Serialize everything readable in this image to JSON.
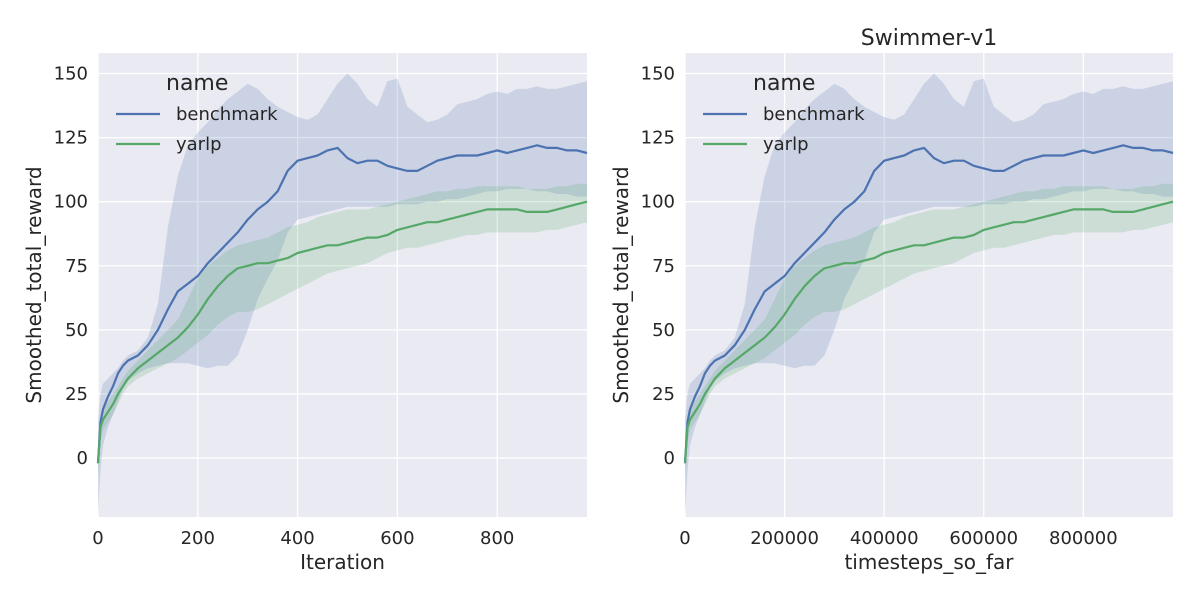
{
  "chart_data": [
    {
      "type": "line",
      "title": "",
      "xlabel": "Iteration",
      "ylabel": "Smoothed_total_reward",
      "xlim": [
        0,
        980
      ],
      "ylim": [
        -23,
        158
      ],
      "xticks": [
        "0",
        "200",
        "400",
        "600",
        "800"
      ],
      "xtick_values": [
        0,
        200,
        400,
        600,
        800
      ],
      "yticks": [
        "0",
        "25",
        "50",
        "75",
        "100",
        "125",
        "150"
      ],
      "ytick_values": [
        0,
        25,
        50,
        75,
        100,
        125,
        150
      ],
      "grid": true,
      "legend": {
        "title": "name",
        "placement": "top-left",
        "entries": [
          "benchmark",
          "yarlp"
        ]
      },
      "x": [
        0,
        5,
        10,
        20,
        30,
        40,
        50,
        60,
        80,
        100,
        120,
        140,
        160,
        180,
        200,
        220,
        240,
        260,
        280,
        300,
        320,
        340,
        360,
        380,
        400,
        420,
        440,
        460,
        480,
        500,
        520,
        540,
        560,
        580,
        600,
        620,
        640,
        660,
        680,
        700,
        720,
        740,
        760,
        780,
        800,
        820,
        840,
        860,
        880,
        900,
        920,
        940,
        960,
        980
      ],
      "series": [
        {
          "name": "benchmark",
          "color": "#4c72b0",
          "values": [
            -2,
            14,
            19,
            24,
            28,
            33,
            36,
            38,
            40,
            44,
            50,
            58,
            65,
            68,
            71,
            76,
            80,
            84,
            88,
            93,
            97,
            100,
            104,
            112,
            116,
            117,
            118,
            120,
            121,
            117,
            115,
            116,
            116,
            114,
            113,
            112,
            112,
            114,
            116,
            117,
            118,
            118,
            118,
            119,
            120,
            119,
            120,
            121,
            122,
            121,
            121,
            120,
            120,
            119
          ],
          "upper": [
            15,
            25,
            29,
            31,
            33,
            35,
            38,
            40,
            42,
            47,
            60,
            90,
            110,
            122,
            127,
            131,
            136,
            140,
            143,
            146,
            144,
            140,
            137,
            135,
            133,
            132,
            134,
            140,
            146,
            150,
            146,
            140,
            137,
            147,
            148,
            137,
            134,
            131,
            132,
            134,
            138,
            139,
            140,
            142,
            143,
            142,
            144,
            144,
            145,
            144,
            144,
            145,
            146,
            147
          ],
          "lower": [
            -22,
            -5,
            5,
            12,
            17,
            22,
            27,
            30,
            33,
            35,
            36,
            37,
            37,
            37,
            36,
            35,
            36,
            36,
            40,
            50,
            62,
            70,
            77,
            88,
            93,
            94,
            95,
            96,
            97,
            98,
            98,
            98,
            98,
            98,
            99,
            99,
            99,
            100,
            100,
            101,
            101,
            102,
            103,
            104,
            104,
            105,
            105,
            105,
            104,
            104,
            103,
            103,
            102,
            102
          ]
        },
        {
          "name": "yarlp",
          "color": "#55a868",
          "values": [
            -2,
            12,
            15,
            18,
            21,
            25,
            28,
            31,
            35,
            38,
            41,
            44,
            47,
            51,
            56,
            62,
            67,
            71,
            74,
            75,
            76,
            76,
            77,
            78,
            80,
            81,
            82,
            83,
            83,
            84,
            85,
            86,
            86,
            87,
            89,
            90,
            91,
            92,
            92,
            93,
            94,
            95,
            96,
            97,
            97,
            97,
            97,
            96,
            96,
            96,
            97,
            98,
            99,
            100
          ],
          "upper": [
            8,
            16,
            19,
            22,
            25,
            28,
            31,
            34,
            38,
            42,
            46,
            50,
            54,
            62,
            70,
            75,
            78,
            81,
            83,
            84,
            85,
            86,
            88,
            90,
            91,
            92,
            94,
            95,
            96,
            97,
            97,
            97,
            98,
            99,
            100,
            101,
            102,
            103,
            104,
            104,
            105,
            105,
            106,
            106,
            106,
            106,
            106,
            105,
            105,
            105,
            106,
            106,
            107,
            107
          ],
          "lower": [
            -8,
            6,
            11,
            14,
            17,
            21,
            25,
            28,
            31,
            33,
            35,
            37,
            39,
            42,
            45,
            48,
            52,
            55,
            57,
            57,
            58,
            60,
            62,
            64,
            66,
            68,
            70,
            72,
            73,
            74,
            75,
            76,
            78,
            80,
            81,
            82,
            82,
            83,
            84,
            85,
            86,
            87,
            87,
            88,
            88,
            88,
            88,
            88,
            88,
            89,
            89,
            90,
            91,
            92
          ]
        }
      ]
    },
    {
      "type": "line",
      "title": "Swimmer-v1",
      "xlabel": "timesteps_so_far",
      "ylabel": "Smoothed_total_reward",
      "xlim": [
        0,
        980000
      ],
      "ylim": [
        -23,
        158
      ],
      "xticks": [
        "0",
        "200000",
        "400000",
        "600000",
        "800000"
      ],
      "xtick_values": [
        0,
        200000,
        400000,
        600000,
        800000
      ],
      "yticks": [
        "0",
        "25",
        "50",
        "75",
        "100",
        "125",
        "150"
      ],
      "ytick_values": [
        0,
        25,
        50,
        75,
        100,
        125,
        150
      ],
      "grid": true,
      "legend": {
        "title": "name",
        "placement": "top-left",
        "entries": [
          "benchmark",
          "yarlp"
        ]
      },
      "x": [
        0,
        5000,
        10000,
        20000,
        30000,
        40000,
        50000,
        60000,
        80000,
        100000,
        120000,
        140000,
        160000,
        180000,
        200000,
        220000,
        240000,
        260000,
        280000,
        300000,
        320000,
        340000,
        360000,
        380000,
        400000,
        420000,
        440000,
        460000,
        480000,
        500000,
        520000,
        540000,
        560000,
        580000,
        600000,
        620000,
        640000,
        660000,
        680000,
        700000,
        720000,
        740000,
        760000,
        780000,
        800000,
        820000,
        840000,
        860000,
        880000,
        900000,
        920000,
        940000,
        960000,
        980000
      ],
      "series": [
        {
          "name": "benchmark",
          "color": "#4c72b0",
          "values": [
            -2,
            14,
            19,
            24,
            28,
            33,
            36,
            38,
            40,
            44,
            50,
            58,
            65,
            68,
            71,
            76,
            80,
            84,
            88,
            93,
            97,
            100,
            104,
            112,
            116,
            117,
            118,
            120,
            121,
            117,
            115,
            116,
            116,
            114,
            113,
            112,
            112,
            114,
            116,
            117,
            118,
            118,
            118,
            119,
            120,
            119,
            120,
            121,
            122,
            121,
            121,
            120,
            120,
            119
          ],
          "upper": [
            15,
            25,
            29,
            31,
            33,
            35,
            38,
            40,
            42,
            47,
            60,
            90,
            110,
            122,
            127,
            131,
            136,
            140,
            143,
            146,
            144,
            140,
            137,
            135,
            133,
            132,
            134,
            140,
            146,
            150,
            146,
            140,
            137,
            147,
            148,
            137,
            134,
            131,
            132,
            134,
            138,
            139,
            140,
            142,
            143,
            142,
            144,
            144,
            145,
            144,
            144,
            145,
            146,
            147
          ],
          "lower": [
            -22,
            -5,
            5,
            12,
            17,
            22,
            27,
            30,
            33,
            35,
            36,
            37,
            37,
            37,
            36,
            35,
            36,
            36,
            40,
            50,
            62,
            70,
            77,
            88,
            93,
            94,
            95,
            96,
            97,
            98,
            98,
            98,
            98,
            98,
            99,
            99,
            99,
            100,
            100,
            101,
            101,
            102,
            103,
            104,
            104,
            105,
            105,
            105,
            104,
            104,
            103,
            103,
            102,
            102
          ]
        },
        {
          "name": "yarlp",
          "color": "#55a868",
          "values": [
            -2,
            12,
            15,
            18,
            21,
            25,
            28,
            31,
            35,
            38,
            41,
            44,
            47,
            51,
            56,
            62,
            67,
            71,
            74,
            75,
            76,
            76,
            77,
            78,
            80,
            81,
            82,
            83,
            83,
            84,
            85,
            86,
            86,
            87,
            89,
            90,
            91,
            92,
            92,
            93,
            94,
            95,
            96,
            97,
            97,
            97,
            97,
            96,
            96,
            96,
            97,
            98,
            99,
            100
          ],
          "upper": [
            8,
            16,
            19,
            22,
            25,
            28,
            31,
            34,
            38,
            42,
            46,
            50,
            54,
            62,
            70,
            75,
            78,
            81,
            83,
            84,
            85,
            86,
            88,
            90,
            91,
            92,
            94,
            95,
            96,
            97,
            97,
            97,
            98,
            99,
            100,
            101,
            102,
            103,
            104,
            104,
            105,
            105,
            106,
            106,
            106,
            106,
            106,
            105,
            105,
            105,
            106,
            106,
            107,
            107
          ],
          "lower": [
            -8,
            6,
            11,
            14,
            17,
            21,
            25,
            28,
            31,
            33,
            35,
            37,
            39,
            42,
            45,
            48,
            52,
            55,
            57,
            57,
            58,
            60,
            62,
            64,
            66,
            68,
            70,
            72,
            73,
            74,
            75,
            76,
            78,
            80,
            81,
            82,
            82,
            83,
            84,
            85,
            86,
            87,
            87,
            88,
            88,
            88,
            88,
            88,
            88,
            89,
            89,
            90,
            91,
            92
          ]
        }
      ]
    }
  ]
}
